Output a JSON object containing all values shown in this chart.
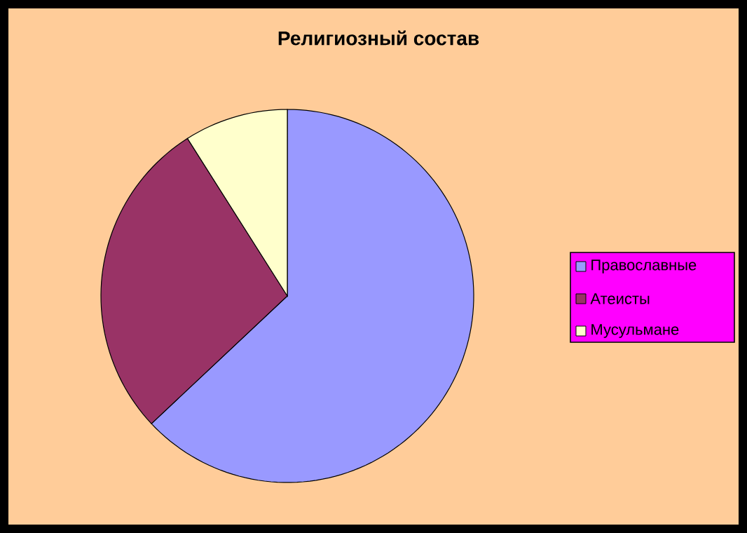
{
  "chart_data": {
    "type": "pie",
    "title": "Религиозный состав",
    "categories": [
      "Православные",
      "Атеисты",
      "Мусульмане"
    ],
    "values": [
      63,
      28,
      9
    ],
    "colors": [
      "#9999ff",
      "#993366",
      "#ffffcc"
    ],
    "legend": "right"
  }
}
